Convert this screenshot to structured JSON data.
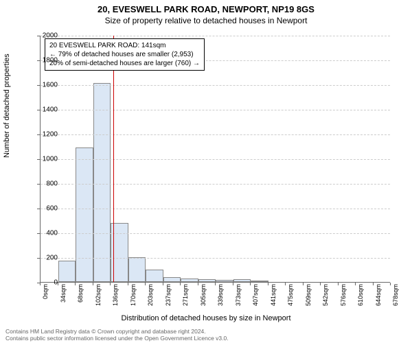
{
  "title_main": "20, EVESWELL PARK ROAD, NEWPORT, NP19 8GS",
  "title_sub": "Size of property relative to detached houses in Newport",
  "y_axis_label": "Number of detached properties",
  "x_axis_label": "Distribution of detached houses by size in Newport",
  "chart": {
    "type": "histogram",
    "background_color": "#ffffff",
    "grid_color": "#cccccc",
    "axis_color": "#666666",
    "bar_fill": "#dbe7f5",
    "bar_border": "#888888",
    "marker_color": "#cc0000",
    "ylim": [
      0,
      2000
    ],
    "ytick_step": 200,
    "x_ticks": [
      "0sqm",
      "34sqm",
      "68sqm",
      "102sqm",
      "136sqm",
      "170sqm",
      "203sqm",
      "237sqm",
      "271sqm",
      "305sqm",
      "339sqm",
      "373sqm",
      "407sqm",
      "441sqm",
      "475sqm",
      "509sqm",
      "542sqm",
      "576sqm",
      "610sqm",
      "644sqm",
      "678sqm"
    ],
    "bars": [
      {
        "x_index": 1,
        "value": 170
      },
      {
        "x_index": 2,
        "value": 1090
      },
      {
        "x_index": 3,
        "value": 1610
      },
      {
        "x_index": 4,
        "value": 480
      },
      {
        "x_index": 5,
        "value": 200
      },
      {
        "x_index": 6,
        "value": 100
      },
      {
        "x_index": 7,
        "value": 40
      },
      {
        "x_index": 8,
        "value": 30
      },
      {
        "x_index": 9,
        "value": 20
      },
      {
        "x_index": 10,
        "value": 15
      },
      {
        "x_index": 11,
        "value": 20
      },
      {
        "x_index": 12,
        "value": 10
      }
    ],
    "marker_x": 141,
    "x_max": 678
  },
  "annotation": {
    "line1": "20 EVESWELL PARK ROAD: 141sqm",
    "line2": "← 79% of detached houses are smaller (2,953)",
    "line3": "20% of semi-detached houses are larger (760) →"
  },
  "footer": {
    "line1": "Contains HM Land Registry data © Crown copyright and database right 2024.",
    "line2": "Contains public sector information licensed under the Open Government Licence v3.0."
  }
}
